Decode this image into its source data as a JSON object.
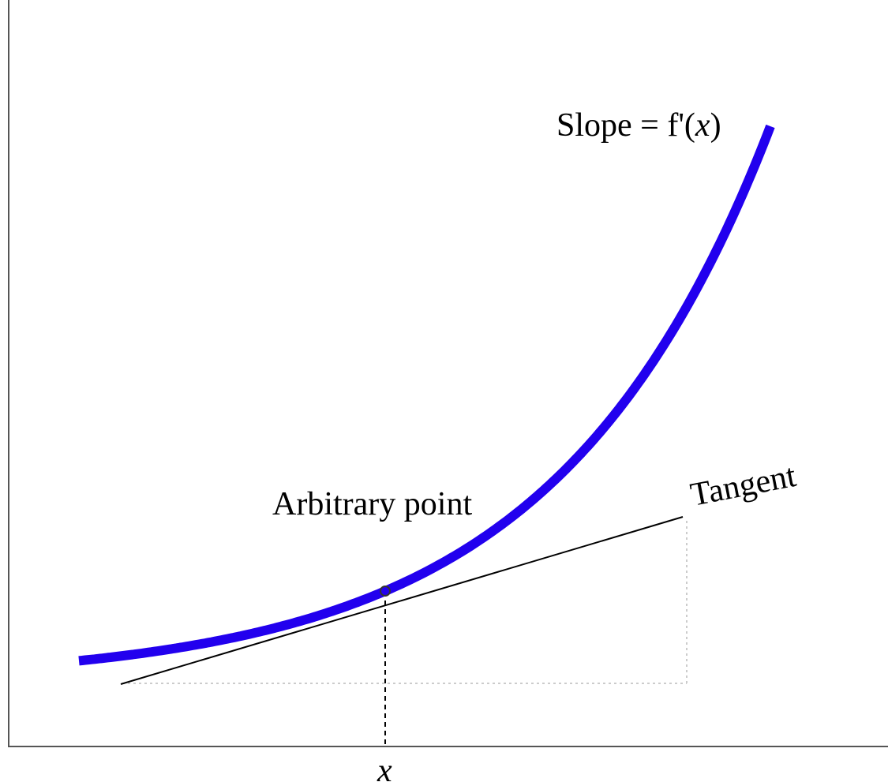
{
  "labels": {
    "slope_prefix": "Slope = f'(",
    "slope_var": "x",
    "slope_suffix": ")",
    "tangent": "Tangent",
    "point": "Arbitrary point",
    "x_axis_var": "x"
  },
  "colors": {
    "curve": "#2200ee",
    "tangent": "#000000",
    "axes": "#555555",
    "guide_dotted": "#cccccc",
    "guide_dashed": "#000000"
  },
  "curve_function": "exponential"
}
